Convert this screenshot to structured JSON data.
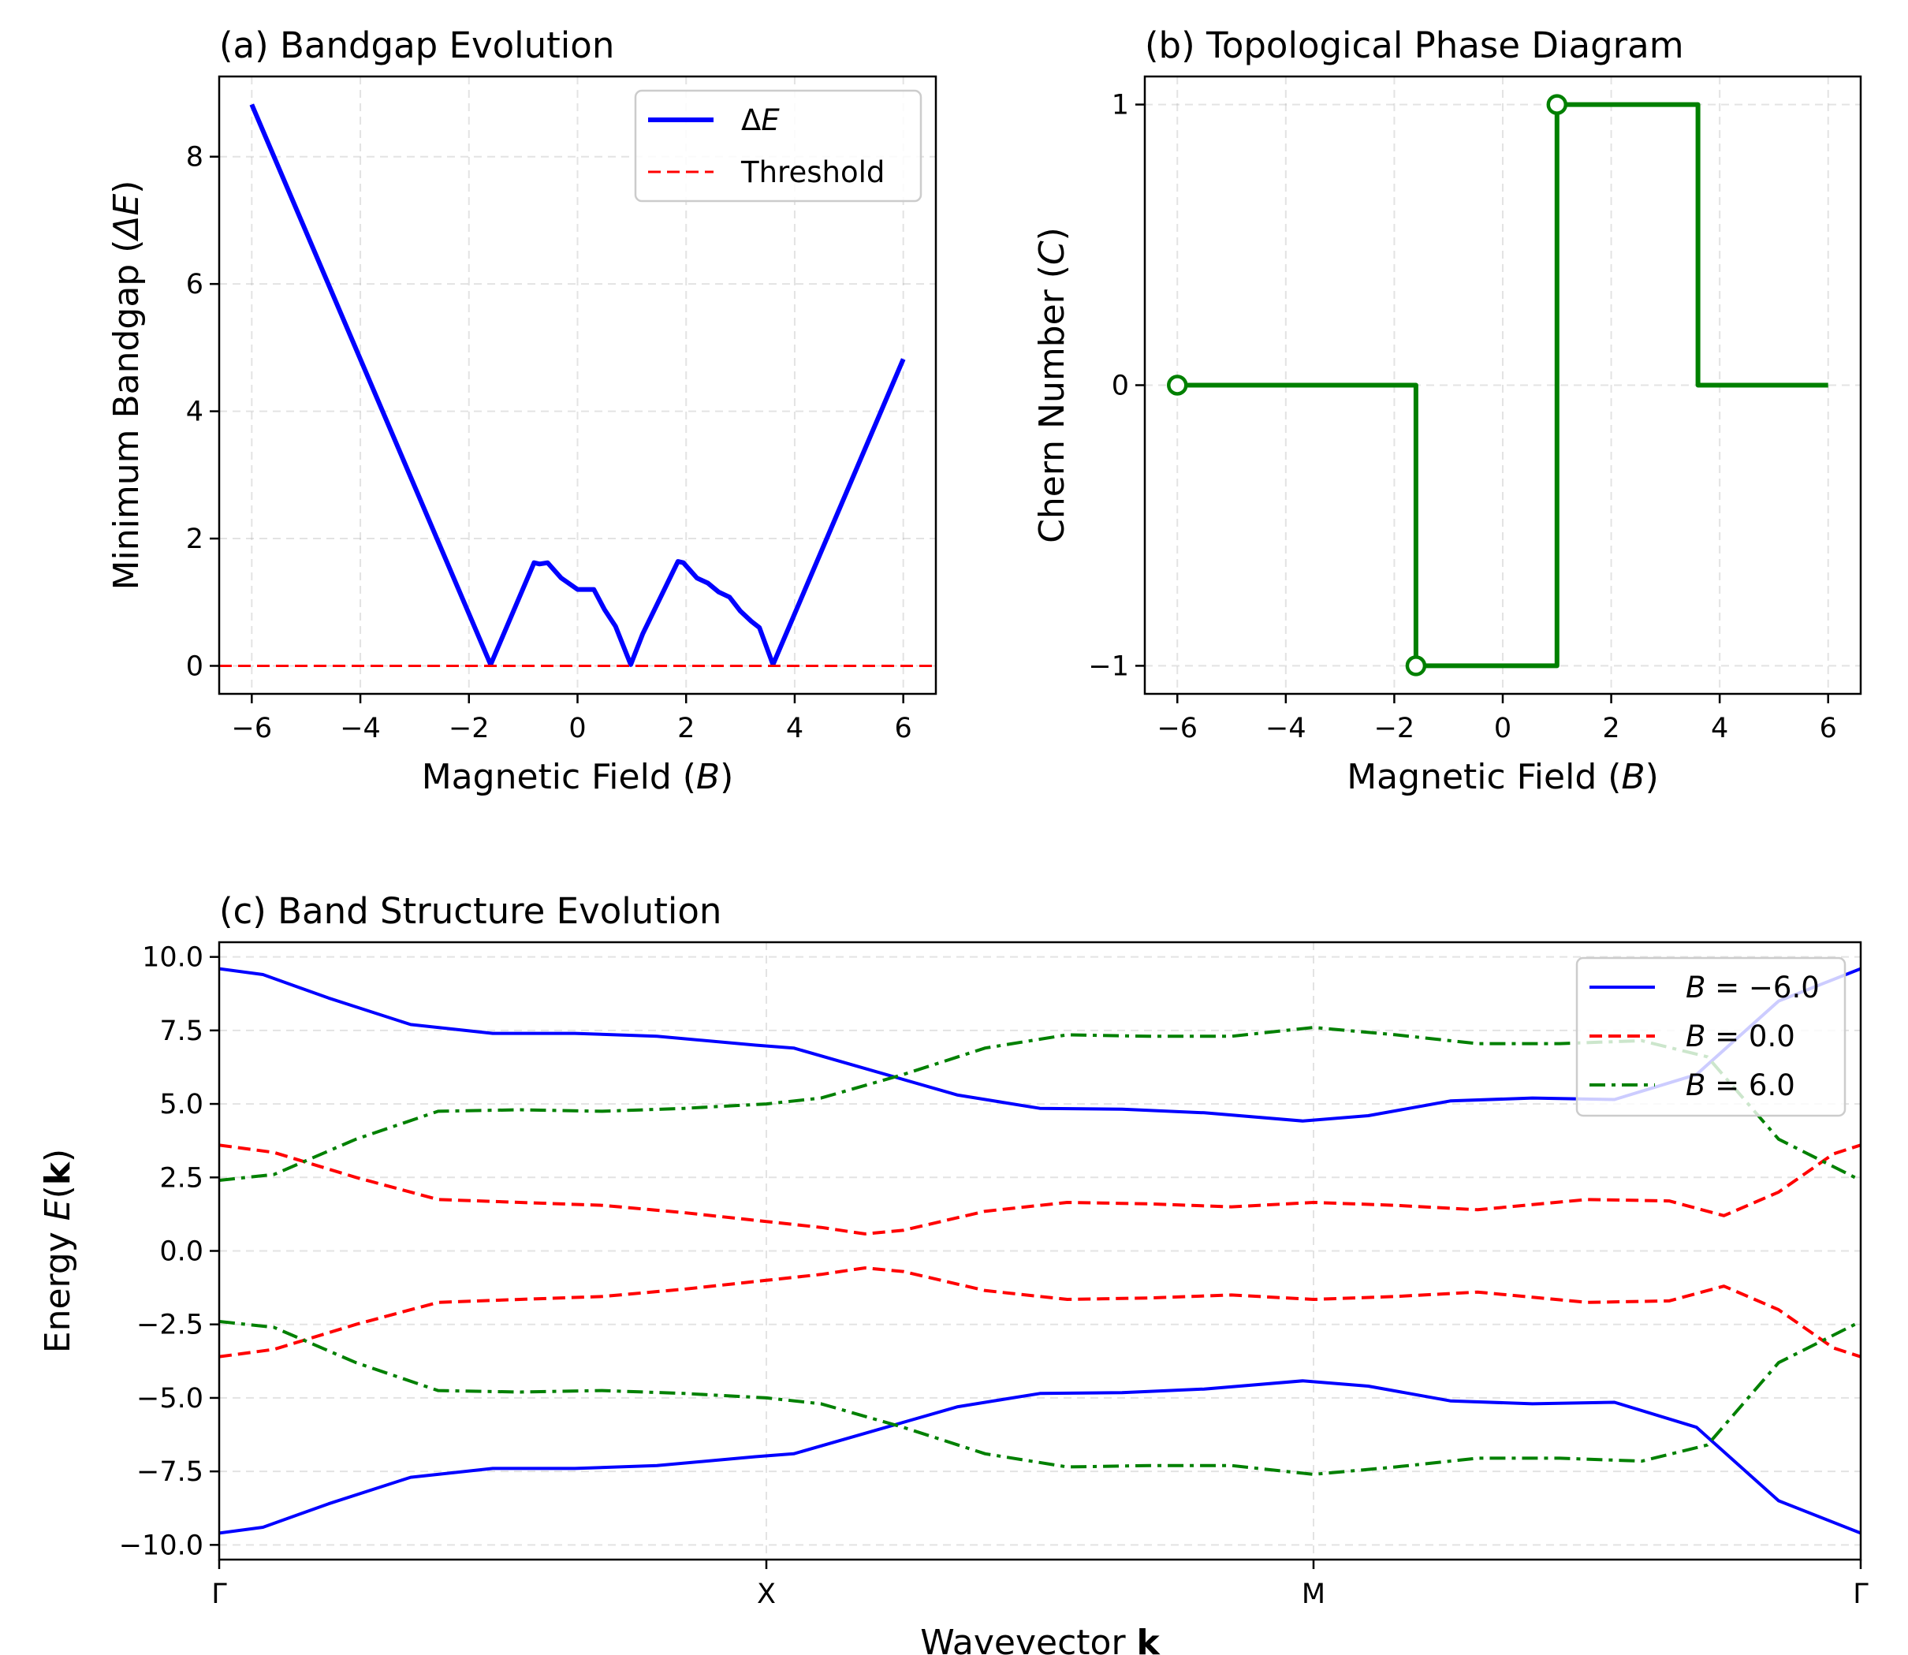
{
  "chart_data": [
    {
      "id": "a",
      "type": "line",
      "title": "(a) Bandgap Evolution",
      "xlabel": "Magnetic Field (B)",
      "ylabel": "Minimum Bandgap (ΔE)",
      "xlim": [
        -6.6,
        6.6
      ],
      "ylim": [
        -0.44,
        9.26
      ],
      "xticks": [
        -6,
        -4,
        -2,
        0,
        2,
        4,
        6
      ],
      "xtick_labels": [
        "−6",
        "−4",
        "−2",
        "0",
        "2",
        "4",
        "6"
      ],
      "yticks": [
        0,
        2,
        4,
        6,
        8
      ],
      "ytick_labels": [
        "0",
        "2",
        "4",
        "6",
        "8"
      ],
      "grid": true,
      "legend": "top-right",
      "series": [
        {
          "name": "ΔE",
          "color": "#0000ff",
          "style": "solid",
          "x": [
            -6.0,
            -1.6,
            -0.8,
            -0.7,
            -0.55,
            -0.3,
            0.0,
            0.2,
            0.3,
            0.5,
            0.7,
            0.98,
            1.2,
            1.85,
            1.95,
            2.2,
            2.4,
            2.6,
            2.8,
            3.0,
            3.2,
            3.35,
            3.6,
            6.0
          ],
          "y": [
            8.82,
            0.02,
            1.62,
            1.6,
            1.62,
            1.38,
            1.2,
            1.2,
            1.2,
            0.88,
            0.62,
            0.02,
            0.5,
            1.64,
            1.62,
            1.38,
            1.3,
            1.16,
            1.08,
            0.86,
            0.7,
            0.6,
            0.02,
            4.82
          ]
        },
        {
          "name": "Threshold",
          "color": "#ff0000",
          "style": "dashed",
          "x": [
            -6.6,
            6.6
          ],
          "y": [
            0,
            0
          ]
        }
      ]
    },
    {
      "id": "b",
      "type": "line",
      "title": "(b) Topological Phase Diagram",
      "xlabel": "Magnetic Field (B)",
      "ylabel": "Chern Number (C)",
      "xlim": [
        -6.6,
        6.6
      ],
      "ylim": [
        -1.1,
        1.1
      ],
      "xticks": [
        -6,
        -4,
        -2,
        0,
        2,
        4,
        6
      ],
      "xtick_labels": [
        "−6",
        "−4",
        "−2",
        "0",
        "2",
        "4",
        "6"
      ],
      "yticks": [
        -1,
        0,
        1
      ],
      "ytick_labels": [
        "−1",
        "0",
        "1"
      ],
      "grid": true,
      "series": [
        {
          "name": "Chern number",
          "color": "#008000",
          "style": "step",
          "x": [
            -6.0,
            -1.6,
            -1.6,
            1.0,
            1.0,
            3.6,
            3.6,
            6.0
          ],
          "y": [
            0,
            0,
            -1,
            -1,
            1,
            1,
            0,
            0
          ]
        }
      ],
      "markers": {
        "color": "#008000",
        "x": [
          -6.0,
          -1.6,
          1.0
        ],
        "y": [
          0,
          -1,
          1
        ]
      }
    },
    {
      "id": "c",
      "type": "line",
      "title": "(c) Band Structure Evolution",
      "xlabel": "Wavevector k",
      "ylabel": "Energy E(k)",
      "xlim": [
        0,
        3
      ],
      "ylim": [
        -10.5,
        10.5
      ],
      "xticks": [
        0,
        1,
        2,
        3
      ],
      "xtick_labels": [
        "Γ",
        "X",
        "M",
        "Γ"
      ],
      "yticks": [
        -10,
        -7.5,
        -5,
        -2.5,
        0,
        2.5,
        5,
        7.5,
        10
      ],
      "ytick_labels": [
        "−10.0",
        "−7.5",
        "−5.0",
        "−2.5",
        "0.0",
        "2.5",
        "5.0",
        "7.5",
        "10.0"
      ],
      "grid": true,
      "legend": "top-right",
      "legend_entries": [
        {
          "label": "B = −6.0",
          "color": "#0000ff",
          "style": "solid"
        },
        {
          "label": "B = 0.0",
          "color": "#ff0000",
          "style": "dashed"
        },
        {
          "label": "B = 6.0",
          "color": "#008000",
          "style": "dashdot"
        }
      ],
      "series": [
        {
          "name": "B = −6.0 upper",
          "color": "#0000ff",
          "style": "solid",
          "x": [
            0,
            0.08,
            0.2,
            0.35,
            0.5,
            0.65,
            0.8,
            0.98,
            1.05,
            1.2,
            1.35,
            1.5,
            1.65,
            1.8,
            1.98,
            2.1,
            2.25,
            2.4,
            2.55,
            2.7,
            2.85,
            3.0
          ],
          "y": [
            9.6,
            9.4,
            8.6,
            7.7,
            7.4,
            7.4,
            7.3,
            7.0,
            6.9,
            6.1,
            5.3,
            4.85,
            4.82,
            4.7,
            4.42,
            4.6,
            5.1,
            5.2,
            5.15,
            6.0,
            8.5,
            9.6
          ]
        },
        {
          "name": "B = −6.0 lower",
          "color": "#0000ff",
          "style": "solid",
          "x": [
            0,
            0.08,
            0.2,
            0.35,
            0.5,
            0.65,
            0.8,
            0.98,
            1.05,
            1.2,
            1.35,
            1.5,
            1.65,
            1.8,
            1.98,
            2.1,
            2.25,
            2.4,
            2.55,
            2.7,
            2.85,
            3.0
          ],
          "y": [
            -9.6,
            -9.4,
            -8.6,
            -7.7,
            -7.4,
            -7.4,
            -7.3,
            -7.0,
            -6.9,
            -6.1,
            -5.3,
            -4.85,
            -4.82,
            -4.7,
            -4.42,
            -4.6,
            -5.1,
            -5.2,
            -5.15,
            -6.0,
            -8.5,
            -9.6
          ]
        },
        {
          "name": "B = 0.0 upper",
          "color": "#ff0000",
          "style": "dashed",
          "x": [
            0,
            0.1,
            0.25,
            0.4,
            0.55,
            0.7,
            0.85,
            1.0,
            1.1,
            1.18,
            1.25,
            1.4,
            1.55,
            1.7,
            1.85,
            2.0,
            2.15,
            2.3,
            2.5,
            2.65,
            2.75,
            2.85,
            2.95,
            3.0
          ],
          "y": [
            3.6,
            3.35,
            2.5,
            1.75,
            1.65,
            1.55,
            1.3,
            1.0,
            0.8,
            0.58,
            0.7,
            1.35,
            1.65,
            1.6,
            1.5,
            1.65,
            1.55,
            1.4,
            1.75,
            1.7,
            1.2,
            2.0,
            3.3,
            3.6
          ]
        },
        {
          "name": "B = 0.0 lower",
          "color": "#ff0000",
          "style": "dashed",
          "x": [
            0,
            0.1,
            0.25,
            0.4,
            0.55,
            0.7,
            0.85,
            1.0,
            1.1,
            1.18,
            1.25,
            1.4,
            1.55,
            1.7,
            1.85,
            2.0,
            2.15,
            2.3,
            2.5,
            2.65,
            2.75,
            2.85,
            2.95,
            3.0
          ],
          "y": [
            -3.6,
            -3.35,
            -2.5,
            -1.75,
            -1.65,
            -1.55,
            -1.3,
            -1.0,
            -0.8,
            -0.58,
            -0.7,
            -1.35,
            -1.65,
            -1.6,
            -1.5,
            -1.65,
            -1.55,
            -1.4,
            -1.75,
            -1.7,
            -1.2,
            -2.0,
            -3.3,
            -3.6
          ]
        },
        {
          "name": "B = 6.0 upper",
          "color": "#008000",
          "style": "dashdot",
          "x": [
            0,
            0.1,
            0.25,
            0.4,
            0.55,
            0.7,
            0.85,
            1.0,
            1.1,
            1.25,
            1.4,
            1.55,
            1.7,
            1.85,
            2.0,
            2.15,
            2.3,
            2.45,
            2.6,
            2.72,
            2.85,
            3.0
          ],
          "y": [
            2.4,
            2.6,
            3.8,
            4.75,
            4.8,
            4.75,
            4.85,
            5.0,
            5.2,
            6.0,
            6.9,
            7.35,
            7.3,
            7.3,
            7.6,
            7.35,
            7.05,
            7.05,
            7.15,
            6.6,
            3.8,
            2.4
          ]
        },
        {
          "name": "B = 6.0 lower",
          "color": "#008000",
          "style": "dashdot",
          "x": [
            0,
            0.1,
            0.25,
            0.4,
            0.55,
            0.7,
            0.85,
            1.0,
            1.1,
            1.25,
            1.4,
            1.55,
            1.7,
            1.85,
            2.0,
            2.15,
            2.3,
            2.45,
            2.6,
            2.72,
            2.85,
            3.0
          ],
          "y": [
            -2.4,
            -2.6,
            -3.8,
            -4.75,
            -4.8,
            -4.75,
            -4.85,
            -5.0,
            -5.2,
            -6.0,
            -6.9,
            -7.35,
            -7.3,
            -7.3,
            -7.6,
            -7.35,
            -7.05,
            -7.05,
            -7.15,
            -6.6,
            -3.8,
            -2.4
          ]
        }
      ]
    }
  ]
}
